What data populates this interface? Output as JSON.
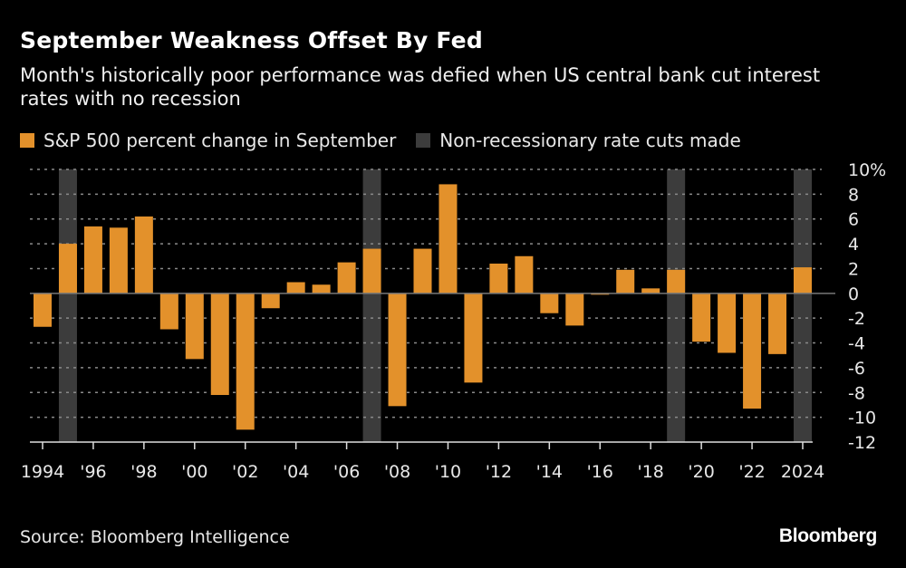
{
  "header": {
    "title": "September Weakness Offset By Fed",
    "subtitle": "Month's historically poor performance was defied when US central bank cut interest rates with no recession"
  },
  "legend": [
    {
      "label": "S&P 500 percent change in September",
      "color": "#e3912b"
    },
    {
      "label": "Non-recessionary rate cuts made",
      "color": "#3c3c3c"
    }
  ],
  "footer": {
    "source": "Source: Bloomberg Intelligence",
    "logo": "Bloomberg"
  },
  "chart_data": {
    "type": "bar",
    "x": [
      1994,
      1995,
      1996,
      1997,
      1998,
      1999,
      2000,
      2001,
      2002,
      2003,
      2004,
      2005,
      2006,
      2007,
      2008,
      2009,
      2010,
      2011,
      2012,
      2013,
      2014,
      2015,
      2016,
      2017,
      2018,
      2019,
      2020,
      2021,
      2022,
      2023,
      2024
    ],
    "series": [
      {
        "name": "S&P 500 percent change in September",
        "values": [
          -2.7,
          4.0,
          5.4,
          5.3,
          6.2,
          -2.9,
          -5.3,
          -8.2,
          -11.0,
          -1.2,
          0.9,
          0.7,
          2.5,
          3.6,
          -9.1,
          3.6,
          8.8,
          -7.2,
          2.4,
          3.0,
          -1.6,
          -2.6,
          -0.1,
          1.9,
          0.4,
          1.9,
          -3.9,
          -4.8,
          -9.3,
          -4.9,
          2.1
        ],
        "color": "#e3912b"
      }
    ],
    "shaded_years": {
      "name": "Non-recessionary rate cuts made",
      "years": [
        1995,
        2007,
        2019,
        2024
      ],
      "color": "#3c3c3c"
    },
    "ylim": [
      -12,
      10
    ],
    "yticks": [
      10,
      8,
      6,
      4,
      2,
      0,
      -2,
      -4,
      -6,
      -8,
      -10,
      -12
    ],
    "ytick_labels": [
      "10%",
      "8",
      "6",
      "4",
      "2",
      "0",
      "-2",
      "-4",
      "-6",
      "-8",
      "-10",
      "-12"
    ],
    "xtick_labels": [
      {
        "year": 1994,
        "label": "1994"
      },
      {
        "year": 1996,
        "label": "'96"
      },
      {
        "year": 1998,
        "label": "'98"
      },
      {
        "year": 2000,
        "label": "'00"
      },
      {
        "year": 2002,
        "label": "'02"
      },
      {
        "year": 2004,
        "label": "'04"
      },
      {
        "year": 2006,
        "label": "'06"
      },
      {
        "year": 2008,
        "label": "'08"
      },
      {
        "year": 2010,
        "label": "'10"
      },
      {
        "year": 2012,
        "label": "'12"
      },
      {
        "year": 2014,
        "label": "'14"
      },
      {
        "year": 2016,
        "label": "'16"
      },
      {
        "year": 2018,
        "label": "'18"
      },
      {
        "year": 2020,
        "label": "'20"
      },
      {
        "year": 2022,
        "label": "'22"
      },
      {
        "year": 2024,
        "label": "2024"
      }
    ],
    "grid": true,
    "legend_position": "top-left",
    "y_axis_side": "right"
  }
}
